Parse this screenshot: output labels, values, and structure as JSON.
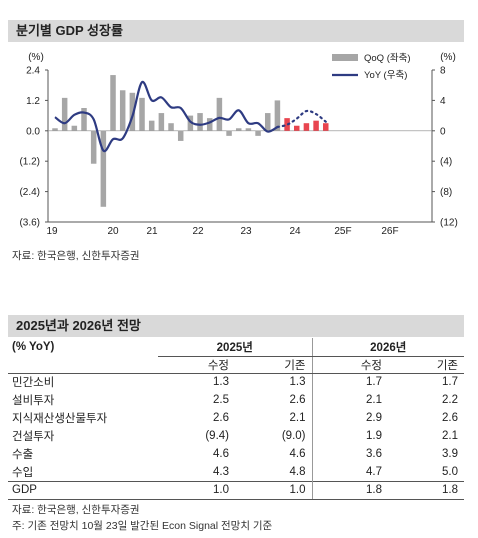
{
  "section1": {
    "title": "분기별 GDP 성장률",
    "source": "자료: 한국은행, 신한투자증권"
  },
  "chart_data": {
    "type": "bar+line",
    "left_axis": {
      "unit": "(%)",
      "ticks": [
        "2.4",
        "1.2",
        "0.0",
        "(1.2)",
        "(2.4)",
        "(3.6)"
      ],
      "ylim": [
        -3.6,
        2.4
      ]
    },
    "right_axis": {
      "unit": "(%)",
      "ticks": [
        "8",
        "4",
        "0",
        "(4)",
        "(8)",
        "(12)"
      ],
      "ylim": [
        -12,
        8
      ]
    },
    "x_labels": [
      "19",
      "20",
      "21",
      "22",
      "23",
      "24",
      "25F",
      "26F"
    ],
    "series": [
      {
        "name": "QoQ (좌축)",
        "type": "bar",
        "values": [
          0.1,
          1.3,
          0.2,
          0.9,
          -1.3,
          -3.0,
          2.2,
          1.6,
          1.5,
          1.3,
          0.4,
          0.7,
          0.3,
          -0.4,
          0.6,
          0.7,
          0.5,
          1.3,
          -0.2,
          0.1,
          0.1,
          -0.2,
          0.7,
          1.2
        ],
        "color": "#a6a6a6"
      },
      {
        "name": "QoQ forecast",
        "type": "bar",
        "values": [
          0.5,
          0.2,
          0.3,
          0.4,
          0.3
        ],
        "color": "#e8454f"
      },
      {
        "name": "YoY (우축)",
        "type": "line",
        "values": [
          1.8,
          1.0,
          2.1,
          2.4,
          1.5,
          -2.6,
          -1.1,
          -1.0,
          1.9,
          6.4,
          4.0,
          4.4,
          3.1,
          3.0,
          1.2,
          0.8,
          1.1,
          1.7,
          1.5,
          2.7,
          1.0,
          1.0,
          -0.1,
          0.5
        ],
        "color": "#2e3b82"
      },
      {
        "name": "YoY forecast",
        "type": "line-dashed",
        "values": [
          0.5,
          0.8,
          1.6,
          2.6,
          2.2,
          1.2
        ],
        "color": "#2e3b82"
      }
    ]
  },
  "section2": {
    "title": "2025년과 2026년 전망",
    "unit_label": "(% YoY)",
    "years": [
      "2025년",
      "2026년"
    ],
    "col_labels": [
      "수정",
      "기존",
      "수정",
      "기존"
    ],
    "rows": [
      {
        "label": "민간소비",
        "v": [
          "1.3",
          "1.3",
          "1.7",
          "1.7"
        ]
      },
      {
        "label": "설비투자",
        "v": [
          "2.5",
          "2.6",
          "2.1",
          "2.2"
        ]
      },
      {
        "label": "지식재산생산물투자",
        "v": [
          "2.6",
          "2.1",
          "2.9",
          "2.6"
        ]
      },
      {
        "label": "건설투자",
        "v": [
          "(9.4)",
          "(9.0)",
          "1.9",
          "2.1"
        ]
      },
      {
        "label": "수출",
        "v": [
          "4.6",
          "4.6",
          "3.6",
          "3.9"
        ]
      },
      {
        "label": "수입",
        "v": [
          "4.3",
          "4.8",
          "4.7",
          "5.0"
        ]
      }
    ],
    "gdp_row": {
      "label": "GDP",
      "v": [
        "1.0",
        "1.0",
        "1.8",
        "1.8"
      ]
    },
    "source": "자료: 한국은행, 신한투자증권",
    "note": "주: 기존 전망치 10월 23일 발간된 Econ Signal 전망치 기준"
  }
}
